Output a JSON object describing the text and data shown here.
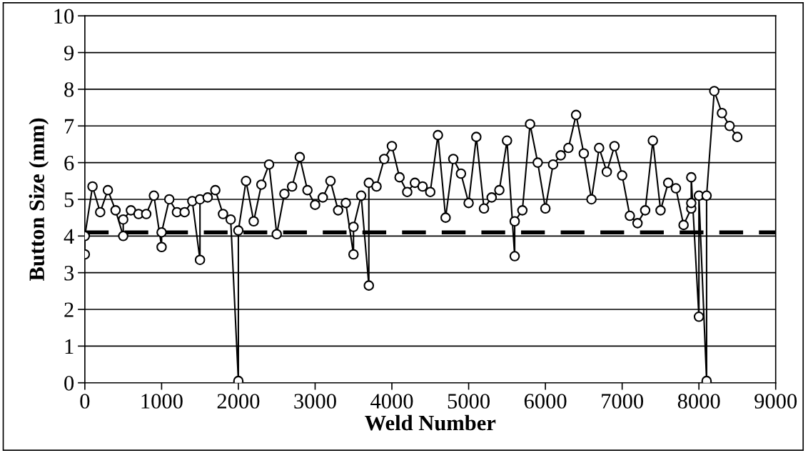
{
  "chart_data": {
    "type": "line",
    "xlabel": "Weld Number",
    "ylabel": "Button Size (mm)",
    "series": [
      {
        "color": "#000000",
        "x": [
          0,
          0,
          100,
          200,
          300,
          400,
          500,
          500,
          600,
          700,
          800,
          900,
          1000,
          1000,
          1100,
          1200,
          1300,
          1400,
          1500,
          1500,
          1600,
          1700,
          1800,
          1900,
          2000,
          2000,
          2100,
          2200,
          2300,
          2400,
          2500,
          2600,
          2700,
          2800,
          2900,
          3000,
          3100,
          3200,
          3300,
          3400,
          3500,
          3500,
          3600,
          3700,
          3700,
          3800,
          3900,
          4000,
          4100,
          4200,
          4300,
          4400,
          4500,
          4600,
          4700,
          4800,
          4900,
          5000,
          5100,
          5200,
          5300,
          5400,
          5500,
          5600,
          5600,
          5700,
          5800,
          5900,
          6000,
          6100,
          6200,
          6300,
          6400,
          6500,
          6600,
          6700,
          6800,
          6900,
          7000,
          7100,
          7200,
          7300,
          7400,
          7500,
          7600,
          7700,
          7800,
          7900,
          7900,
          7900,
          8000,
          8000,
          8100,
          8100,
          8200,
          8300,
          8400,
          8500
        ],
        "values": [
          3.5,
          4.0,
          5.35,
          4.65,
          5.25,
          4.7,
          4.0,
          4.45,
          4.7,
          4.6,
          4.6,
          5.1,
          3.7,
          4.1,
          5.0,
          4.65,
          4.65,
          4.95,
          3.35,
          5.0,
          5.05,
          5.25,
          4.6,
          4.45,
          0.05,
          4.15,
          5.5,
          4.4,
          5.4,
          5.95,
          4.05,
          5.15,
          5.35,
          6.15,
          5.25,
          4.85,
          5.05,
          5.5,
          4.7,
          4.9,
          3.5,
          4.25,
          5.1,
          2.65,
          5.45,
          5.35,
          6.1,
          6.45,
          5.6,
          5.2,
          5.45,
          5.35,
          5.2,
          6.75,
          4.5,
          6.1,
          5.7,
          4.9,
          6.7,
          4.75,
          5.05,
          5.25,
          6.6,
          3.45,
          4.4,
          4.7,
          7.05,
          6.0,
          4.75,
          5.95,
          6.2,
          6.4,
          7.3,
          6.25,
          5.0,
          6.4,
          5.75,
          6.45,
          5.65,
          4.55,
          4.35,
          4.7,
          6.6,
          4.7,
          5.45,
          5.3,
          4.3,
          4.75,
          4.9,
          5.6,
          1.8,
          5.1,
          0.05,
          5.1,
          7.95,
          7.35,
          7.0,
          6.7
        ]
      }
    ],
    "marker": "circle",
    "line_style": "solid",
    "grid": "y",
    "legend": false,
    "xlim": [
      0,
      9000
    ],
    "xticks": [
      0,
      1000,
      2000,
      3000,
      4000,
      5000,
      6000,
      7000,
      8000,
      9000
    ],
    "ylim": [
      0,
      10
    ],
    "yticks": [
      0,
      1,
      2,
      3,
      4,
      5,
      6,
      7,
      8,
      9,
      10
    ],
    "ref_lines": [
      {
        "axis": "y",
        "value": 4.1,
        "label": null,
        "color": "#000000",
        "line_style": "dashed"
      }
    ]
  }
}
